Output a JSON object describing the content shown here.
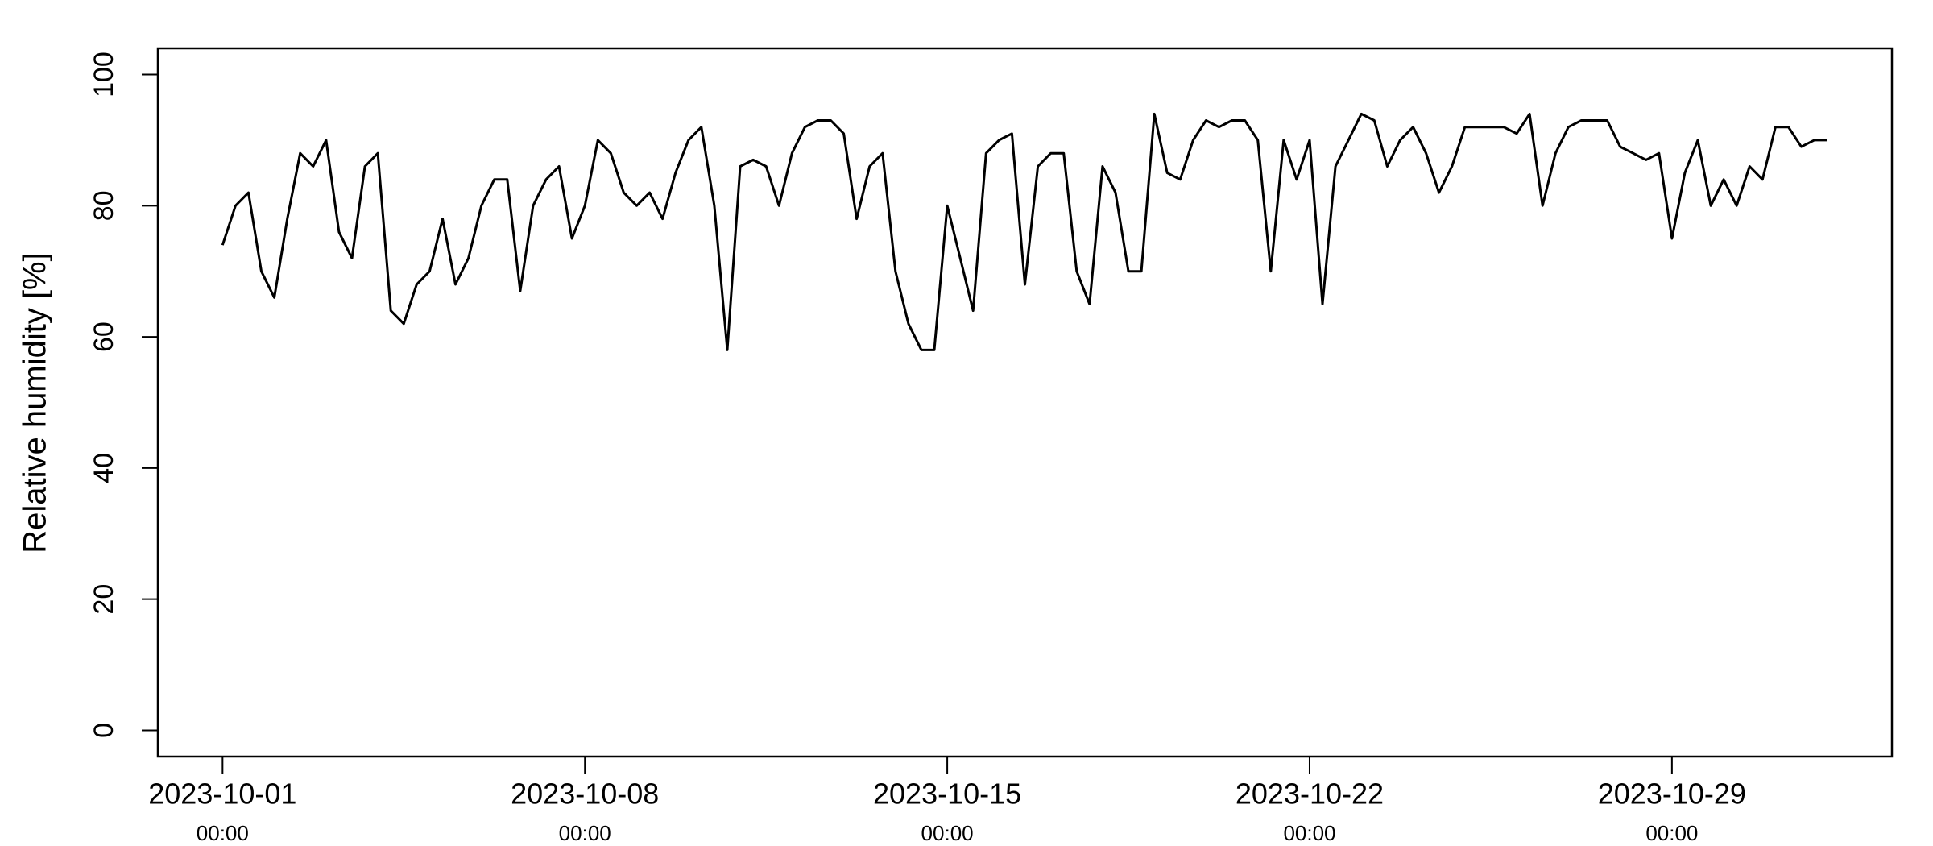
{
  "chart_data": {
    "type": "line",
    "y_label": "Relative humidity [%]",
    "color": "#000000",
    "x": [
      "2023-10-01 00:00",
      "2023-10-01 06:00",
      "2023-10-01 12:00",
      "2023-10-01 18:00",
      "2023-10-02 00:00",
      "2023-10-02 06:00",
      "2023-10-02 12:00",
      "2023-10-02 18:00",
      "2023-10-03 00:00",
      "2023-10-03 06:00",
      "2023-10-03 12:00",
      "2023-10-03 18:00",
      "2023-10-04 00:00",
      "2023-10-04 06:00",
      "2023-10-04 12:00",
      "2023-10-04 18:00",
      "2023-10-05 00:00",
      "2023-10-05 06:00",
      "2023-10-05 12:00",
      "2023-10-05 18:00",
      "2023-10-06 00:00",
      "2023-10-06 06:00",
      "2023-10-06 12:00",
      "2023-10-06 18:00",
      "2023-10-07 00:00",
      "2023-10-07 06:00",
      "2023-10-07 12:00",
      "2023-10-07 18:00",
      "2023-10-08 00:00",
      "2023-10-08 06:00",
      "2023-10-08 12:00",
      "2023-10-08 18:00",
      "2023-10-09 00:00",
      "2023-10-09 06:00",
      "2023-10-09 12:00",
      "2023-10-09 18:00",
      "2023-10-10 00:00",
      "2023-10-10 06:00",
      "2023-10-10 12:00",
      "2023-10-10 18:00",
      "2023-10-11 00:00",
      "2023-10-11 06:00",
      "2023-10-11 12:00",
      "2023-10-11 18:00",
      "2023-10-12 00:00",
      "2023-10-12 06:00",
      "2023-10-12 12:00",
      "2023-10-12 18:00",
      "2023-10-13 00:00",
      "2023-10-13 06:00",
      "2023-10-13 12:00",
      "2023-10-13 18:00",
      "2023-10-14 00:00",
      "2023-10-14 06:00",
      "2023-10-14 12:00",
      "2023-10-14 18:00",
      "2023-10-15 00:00",
      "2023-10-15 06:00",
      "2023-10-15 12:00",
      "2023-10-15 18:00",
      "2023-10-16 00:00",
      "2023-10-16 06:00",
      "2023-10-16 12:00",
      "2023-10-16 18:00",
      "2023-10-17 00:00",
      "2023-10-17 06:00",
      "2023-10-17 12:00",
      "2023-10-17 18:00",
      "2023-10-18 00:00",
      "2023-10-18 06:00",
      "2023-10-18 12:00",
      "2023-10-18 18:00",
      "2023-10-19 00:00",
      "2023-10-19 06:00",
      "2023-10-19 12:00",
      "2023-10-19 18:00",
      "2023-10-20 00:00",
      "2023-10-20 06:00",
      "2023-10-20 12:00",
      "2023-10-20 18:00",
      "2023-10-21 00:00",
      "2023-10-21 06:00",
      "2023-10-21 12:00",
      "2023-10-21 18:00",
      "2023-10-22 00:00",
      "2023-10-22 06:00",
      "2023-10-22 12:00",
      "2023-10-22 18:00",
      "2023-10-23 00:00",
      "2023-10-23 06:00",
      "2023-10-23 12:00",
      "2023-10-23 18:00",
      "2023-10-24 00:00",
      "2023-10-24 06:00",
      "2023-10-24 12:00",
      "2023-10-24 18:00",
      "2023-10-25 00:00",
      "2023-10-25 06:00",
      "2023-10-25 12:00",
      "2023-10-25 18:00",
      "2023-10-26 00:00",
      "2023-10-26 06:00",
      "2023-10-26 12:00",
      "2023-10-26 18:00",
      "2023-10-27 00:00",
      "2023-10-27 06:00",
      "2023-10-27 12:00",
      "2023-10-27 18:00",
      "2023-10-28 00:00",
      "2023-10-28 06:00",
      "2023-10-28 12:00",
      "2023-10-28 18:00",
      "2023-10-29 00:00",
      "2023-10-29 06:00",
      "2023-10-29 12:00",
      "2023-10-29 18:00",
      "2023-10-30 00:00",
      "2023-10-30 06:00",
      "2023-10-30 12:00",
      "2023-10-30 18:00",
      "2023-10-31 00:00",
      "2023-10-31 06:00",
      "2023-10-31 12:00",
      "2023-10-31 18:00",
      "2023-11-01 00:00"
    ],
    "values": [
      74,
      80,
      82,
      70,
      66,
      78,
      88,
      86,
      90,
      76,
      72,
      86,
      88,
      64,
      62,
      68,
      70,
      78,
      68,
      72,
      80,
      84,
      84,
      67,
      80,
      84,
      86,
      75,
      80,
      90,
      88,
      82,
      80,
      82,
      78,
      85,
      90,
      92,
      80,
      58,
      86,
      87,
      86,
      80,
      88,
      92,
      93,
      93,
      91,
      78,
      86,
      88,
      70,
      62,
      58,
      58,
      80,
      72,
      64,
      88,
      90,
      91,
      68,
      86,
      88,
      88,
      70,
      65,
      86,
      82,
      70,
      70,
      94,
      85,
      84,
      90,
      93,
      92,
      93,
      93,
      90,
      70,
      90,
      84,
      90,
      65,
      86,
      90,
      94,
      93,
      86,
      90,
      92,
      88,
      82,
      86,
      92,
      92,
      92,
      92,
      91,
      94,
      80,
      88,
      92,
      93,
      93,
      93,
      89,
      88,
      87,
      88,
      75,
      85,
      90,
      80,
      84,
      80,
      86,
      84,
      92,
      92,
      89,
      90,
      90
    ],
    "xlim": [
      "2023-09-29 18:00",
      "2023-11-02 06:00"
    ],
    "xticks": [
      {
        "value": "2023-10-01 00:00",
        "label": [
          "2023-10-01",
          "00:00"
        ]
      },
      {
        "value": "2023-10-08 00:00",
        "label": [
          "2023-10-08",
          "00:00"
        ]
      },
      {
        "value": "2023-10-15 00:00",
        "label": [
          "2023-10-15",
          "00:00"
        ]
      },
      {
        "value": "2023-10-22 00:00",
        "label": [
          "2023-10-22",
          "00:00"
        ]
      },
      {
        "value": "2023-10-29 00:00",
        "label": [
          "2023-10-29",
          "00:00"
        ]
      }
    ],
    "ylim": [
      -4,
      104
    ],
    "yticks": [
      0,
      20,
      40,
      60,
      80,
      100
    ]
  }
}
